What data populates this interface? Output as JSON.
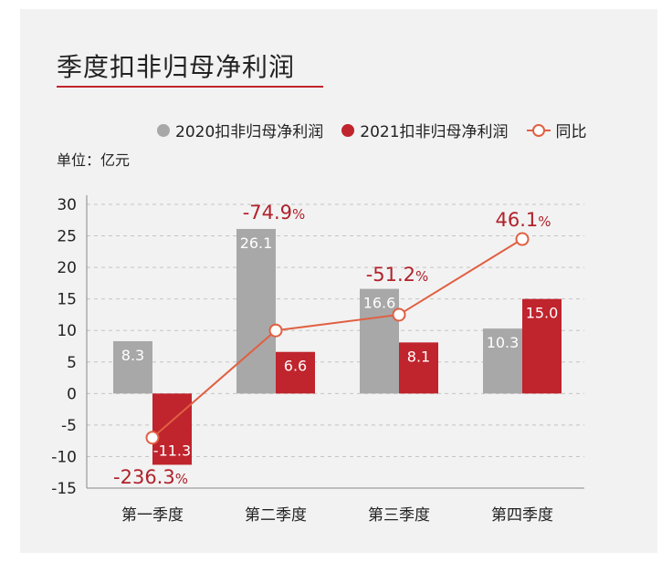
{
  "title": "季度扣非归母净利润",
  "unit_label": "单位：亿元",
  "colors": {
    "series_2020": "#a8a8a8",
    "series_2021": "#c0242d",
    "yoy_line": "#e06042",
    "yoy_label": "#b0222b"
  },
  "legend": [
    {
      "label": "2020扣非归母净利润",
      "marker": "dot",
      "color": "#a8a8a8"
    },
    {
      "label": "2021扣非归母净利润",
      "marker": "dot",
      "color": "#c0242d"
    },
    {
      "label": "同比",
      "marker": "line-circle",
      "color": "#e06042"
    }
  ],
  "chart_data": {
    "type": "bar",
    "categories": [
      "第一季度",
      "第二季度",
      "第三季度",
      "第四季度"
    ],
    "series": [
      {
        "name": "2020扣非归母净利润",
        "values": [
          8.3,
          26.1,
          16.6,
          10.3
        ],
        "labels": [
          "8.3",
          "26.1",
          "16.6",
          "10.3"
        ]
      },
      {
        "name": "2021扣非归母净利润",
        "values": [
          -11.3,
          6.6,
          8.1,
          15.0
        ],
        "labels": [
          "-11.3",
          "6.6",
          "8.1",
          "15.0"
        ]
      }
    ],
    "line_series": {
      "name": "同比",
      "values": [
        -236.3,
        -74.9,
        -51.2,
        46.1
      ],
      "labels": [
        "-236.3",
        "-74.9",
        "-51.2",
        "46.1"
      ],
      "plot_positions": [
        -7,
        10,
        12.5,
        24.5
      ],
      "suffix": "%"
    },
    "yticks": [
      30,
      25,
      20,
      15,
      10,
      5,
      0,
      -5,
      -10,
      -15
    ],
    "ylim": [
      -15,
      30
    ],
    "grid": true,
    "legend_position": "top"
  }
}
